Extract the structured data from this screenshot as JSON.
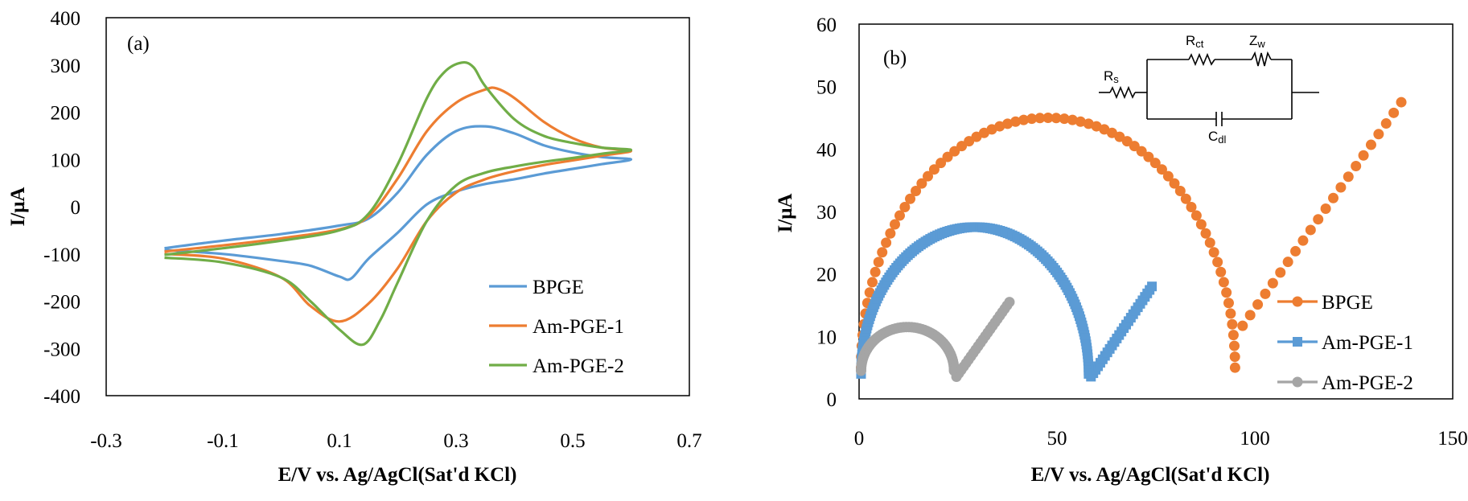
{
  "colors": {
    "BPGE_a": "#5b9bd5",
    "AmPGE1_a": "#ed7d31",
    "AmPGE2_a": "#70ad47",
    "BPGE_b": "#ed7d31",
    "AmPGE1_b": "#5b9bd5",
    "AmPGE2_b": "#a5a5a5"
  },
  "chart_data": [
    {
      "type": "line",
      "panel_label": "(a)",
      "xlabel": "E/V vs. Ag/AgCl(Sat'd KCl)",
      "ylabel": "I/μA",
      "xlim": [
        -0.3,
        0.7
      ],
      "ylim": [
        -400,
        400
      ],
      "xticks": [
        -0.3,
        -0.1,
        0.1,
        0.3,
        0.5,
        0.7
      ],
      "xtick_labels": [
        "-0.3",
        "-0.1",
        "0.1",
        "0.3",
        "0.5",
        "0.7"
      ],
      "yticks": [
        -400,
        -300,
        -200,
        -100,
        0,
        100,
        200,
        300,
        400
      ],
      "ytick_labels": [
        "-400",
        "-300",
        "-200",
        "-100",
        "0",
        "100",
        "200",
        "300",
        "400"
      ],
      "legend_position": "bottom-right",
      "series": [
        {
          "name": "BPGE",
          "x": [
            -0.2,
            -0.1,
            0.0,
            0.1,
            0.15,
            0.2,
            0.25,
            0.3,
            0.35,
            0.4,
            0.45,
            0.5,
            0.55,
            0.6,
            0.55,
            0.5,
            0.45,
            0.4,
            0.35,
            0.3,
            0.25,
            0.2,
            0.15,
            0.12,
            0.1,
            0.05,
            0.0,
            -0.1,
            -0.2
          ],
          "y": [
            -88,
            -72,
            -58,
            -40,
            -25,
            30,
            110,
            160,
            170,
            155,
            130,
            115,
            105,
            100,
            90,
            80,
            70,
            58,
            48,
            32,
            5,
            -55,
            -110,
            -152,
            -148,
            -125,
            -115,
            -100,
            -92
          ]
        },
        {
          "name": "Am-PGE-1",
          "x": [
            -0.2,
            -0.1,
            0.0,
            0.1,
            0.15,
            0.2,
            0.25,
            0.3,
            0.35,
            0.37,
            0.4,
            0.45,
            0.5,
            0.55,
            0.6,
            0.55,
            0.5,
            0.45,
            0.4,
            0.35,
            0.3,
            0.25,
            0.2,
            0.15,
            0.1,
            0.05,
            0.0,
            -0.1,
            -0.2
          ],
          "y": [
            -95,
            -82,
            -67,
            -48,
            -20,
            60,
            160,
            220,
            248,
            250,
            230,
            180,
            145,
            125,
            118,
            108,
            98,
            88,
            75,
            58,
            30,
            -30,
            -130,
            -205,
            -243,
            -210,
            -150,
            -110,
            -100
          ]
        },
        {
          "name": "Am-PGE-2",
          "x": [
            -0.2,
            -0.1,
            0.0,
            0.1,
            0.15,
            0.2,
            0.25,
            0.28,
            0.31,
            0.33,
            0.35,
            0.4,
            0.45,
            0.5,
            0.55,
            0.6,
            0.55,
            0.5,
            0.45,
            0.4,
            0.35,
            0.3,
            0.25,
            0.2,
            0.17,
            0.14,
            0.1,
            0.05,
            0.0,
            -0.1,
            -0.2
          ],
          "y": [
            -102,
            -88,
            -72,
            -50,
            -15,
            90,
            230,
            285,
            305,
            295,
            255,
            185,
            150,
            135,
            125,
            120,
            112,
            103,
            95,
            85,
            72,
            45,
            -30,
            -160,
            -240,
            -292,
            -260,
            -200,
            -150,
            -118,
            -108
          ]
        }
      ]
    },
    {
      "type": "scatter",
      "panel_label": "(b)",
      "xlabel": "E/V vs. Ag/AgCl(Sat'd KCl)",
      "ylabel": "I/μA",
      "xlim": [
        0,
        150
      ],
      "ylim": [
        0,
        60
      ],
      "xticks": [
        0,
        50,
        100,
        150
      ],
      "xtick_labels": [
        "0",
        "50",
        "100",
        "150"
      ],
      "yticks": [
        0,
        10,
        20,
        30,
        40,
        50,
        60
      ],
      "ytick_labels": [
        "0",
        "10",
        "20",
        "30",
        "40",
        "50",
        "60"
      ],
      "legend_position": "bottom-right",
      "inset_circuit": {
        "Rs": {
          "base": "R",
          "sub": "s"
        },
        "Rct": {
          "base": "R",
          "sub": "ct"
        },
        "Zw": {
          "base": "Z",
          "sub": "w"
        },
        "Cdl": {
          "base": "C",
          "sub": "dl"
        }
      },
      "series": [
        {
          "name": "BPGE",
          "marker": "circle",
          "semicircle": {
            "x_start": 0.5,
            "x_end": 95,
            "y_offset": 5,
            "radius_y": 40
          },
          "minimum": [
            95,
            10
          ],
          "tail_end": [
            137,
            47.5
          ]
        },
        {
          "name": "Am-PGE-1",
          "marker": "square",
          "semicircle": {
            "x_start": 0.5,
            "x_end": 58,
            "y_offset": 4,
            "radius_y": 23.5
          },
          "minimum": [
            58,
            3
          ],
          "tail_end": [
            74,
            18
          ]
        },
        {
          "name": "Am-PGE-2",
          "marker": "circle",
          "semicircle": {
            "x_start": 0.5,
            "x_end": 24,
            "y_offset": 4.5,
            "radius_y": 7
          },
          "minimum": [
            24,
            3
          ],
          "tail_end": [
            38,
            15.5
          ]
        }
      ]
    }
  ]
}
